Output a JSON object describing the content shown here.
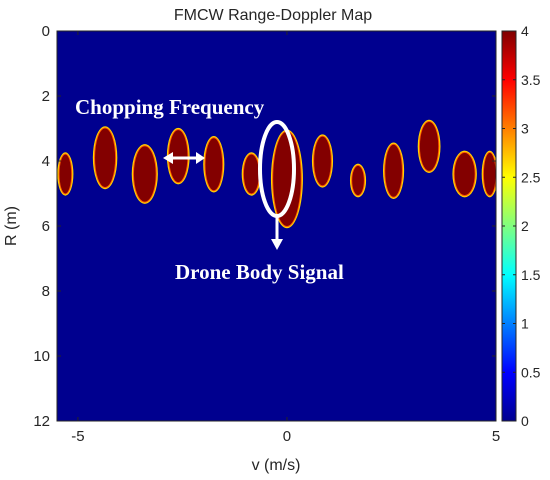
{
  "chart_data": {
    "type": "heatmap",
    "title": "FMCW Range-Doppler Map",
    "xlabel": "v (m/s)",
    "ylabel": "R (m)",
    "xlim": [
      -5.5,
      5
    ],
    "ylim": [
      0,
      12
    ],
    "y_reversed": true,
    "xticks": [
      "-5",
      "0",
      "5"
    ],
    "xtick_values": [
      -5,
      0,
      5
    ],
    "yticks": [
      "0",
      "2",
      "4",
      "6",
      "8",
      "10",
      "12"
    ],
    "ytick_values": [
      0,
      2,
      4,
      6,
      8,
      10,
      12
    ],
    "colorbar": {
      "colormap": "jet",
      "range": [
        0,
        4
      ],
      "ticks": [
        "0",
        "0.5",
        "1",
        "1.5",
        "2",
        "2.5",
        "3",
        "3.5",
        "4"
      ],
      "tick_values": [
        0,
        0.5,
        1,
        1.5,
        2,
        2.5,
        3,
        3.5,
        4
      ]
    },
    "background_value": 0,
    "blobs": [
      {
        "v": -5.3,
        "r": 4.4,
        "dv": 0.14,
        "dr": 0.6,
        "value": 4
      },
      {
        "v": -4.35,
        "r": 3.9,
        "dv": 0.24,
        "dr": 0.9,
        "value": 4
      },
      {
        "v": -3.4,
        "r": 4.4,
        "dv": 0.26,
        "dr": 0.85,
        "value": 4
      },
      {
        "v": -2.6,
        "r": 3.85,
        "dv": 0.22,
        "dr": 0.8,
        "value": 4
      },
      {
        "v": -1.75,
        "r": 4.1,
        "dv": 0.2,
        "dr": 0.8,
        "value": 4
      },
      {
        "v": -0.85,
        "r": 4.4,
        "dv": 0.18,
        "dr": 0.6,
        "value": 4
      },
      {
        "v": 0.0,
        "r": 4.55,
        "dv": 0.33,
        "dr": 1.45,
        "value": 4
      },
      {
        "v": 0.85,
        "r": 4.0,
        "dv": 0.2,
        "dr": 0.75,
        "value": 4
      },
      {
        "v": 1.7,
        "r": 4.6,
        "dv": 0.14,
        "dr": 0.45,
        "value": 4
      },
      {
        "v": 2.55,
        "r": 4.3,
        "dv": 0.2,
        "dr": 0.8,
        "value": 4
      },
      {
        "v": 3.4,
        "r": 3.55,
        "dv": 0.22,
        "dr": 0.75,
        "value": 4
      },
      {
        "v": 4.25,
        "r": 4.4,
        "dv": 0.24,
        "dr": 0.65,
        "value": 4
      },
      {
        "v": 4.85,
        "r": 4.4,
        "dv": 0.14,
        "dr": 0.65,
        "value": 4
      }
    ],
    "annotations": [
      {
        "text": "Chopping Frequency"
      },
      {
        "text": "Drone Body Signal"
      }
    ]
  }
}
